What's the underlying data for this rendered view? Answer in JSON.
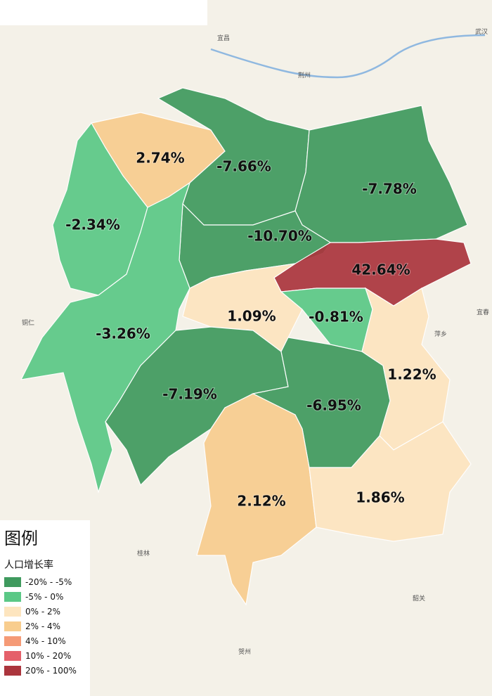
{
  "legend": {
    "title": "图例",
    "subtitle": "人口增长率",
    "items": [
      {
        "label": "-20% - -5%",
        "color": "#3f9a5e"
      },
      {
        "label": "-5% - 0%",
        "color": "#5bc886"
      },
      {
        "label": "0% - 2%",
        "color": "#fde5bf"
      },
      {
        "label": "2% - 4%",
        "color": "#f8cd8e"
      },
      {
        "label": "4% - 10%",
        "color": "#f59a76"
      },
      {
        "label": "10% - 20%",
        "color": "#e5606a"
      },
      {
        "label": "20% - 100%",
        "color": "#ab353d"
      }
    ]
  },
  "regions": [
    {
      "label": "2.74%",
      "color": "#f8cd8e"
    },
    {
      "label": "-7.66%",
      "color": "#3f9a5e"
    },
    {
      "label": "-7.78%",
      "color": "#3f9a5e"
    },
    {
      "label": "-10.70%",
      "color": "#3f9a5e"
    },
    {
      "label": "42.64%",
      "color": "#ab353d"
    },
    {
      "label": "-2.34%",
      "color": "#5bc886"
    },
    {
      "label": "-3.26%",
      "color": "#5bc886"
    },
    {
      "label": "1.09%",
      "color": "#fde5bf"
    },
    {
      "label": "-0.81%",
      "color": "#5bc886"
    },
    {
      "label": "-7.19%",
      "color": "#3f9a5e"
    },
    {
      "label": "-6.95%",
      "color": "#3f9a5e"
    },
    {
      "label": "1.22%",
      "color": "#fde5bf"
    },
    {
      "label": "2.12%",
      "color": "#f8cd8e"
    },
    {
      "label": "1.86%",
      "color": "#fde5bf"
    }
  ],
  "places": [
    "武汉",
    "宜昌",
    "荆州",
    "铜仁",
    "桂林",
    "贺州",
    "韶关",
    "萍乡",
    "宜春"
  ]
}
